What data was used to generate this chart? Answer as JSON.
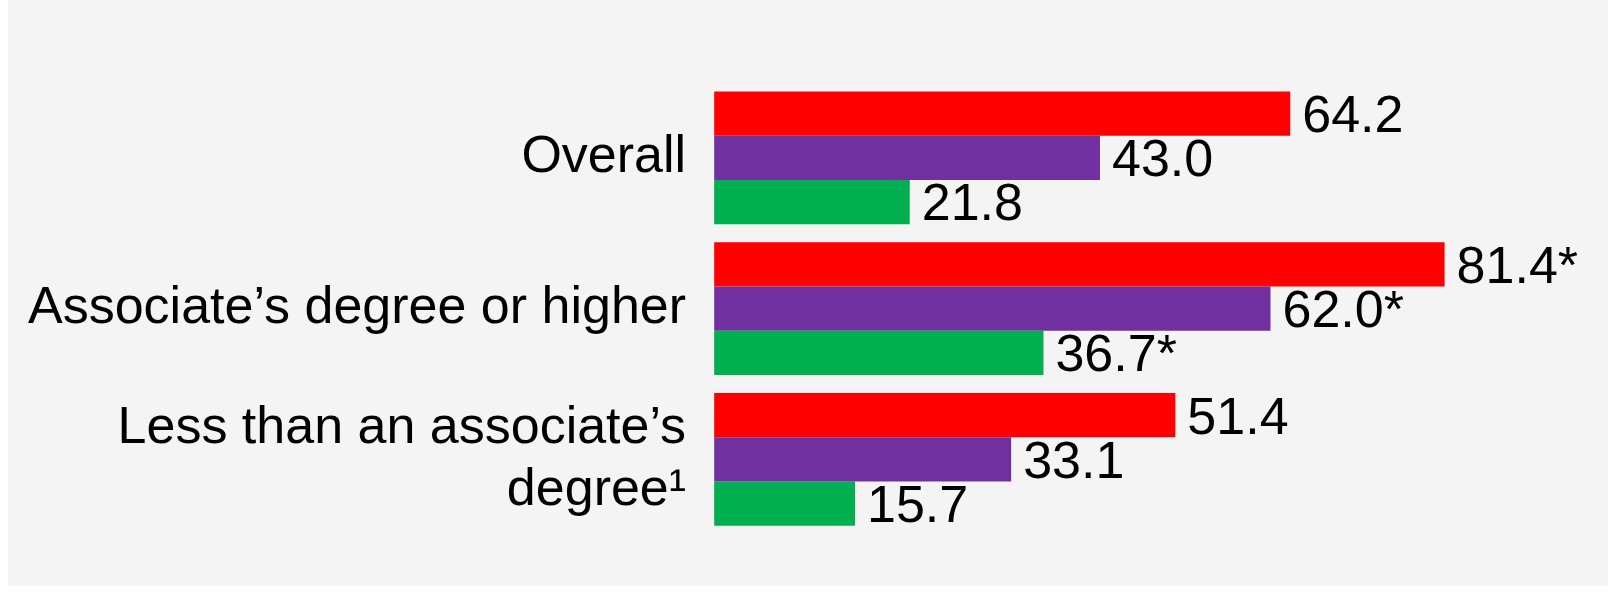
{
  "chart_data": {
    "type": "bar",
    "orientation": "horizontal",
    "categories": [
      "Overall",
      "Associate’s degree or higher",
      "Less than an associate’s degree¹"
    ],
    "series": [
      {
        "color": "#ff0000",
        "values": [
          64.2,
          81.4,
          51.4
        ],
        "value_labels": [
          "64.2",
          "81.4*",
          "51.4"
        ]
      },
      {
        "color": "#7030a0",
        "values": [
          43.0,
          62.0,
          33.1
        ],
        "value_labels": [
          "43.0",
          "62.0*",
          "33.1"
        ]
      },
      {
        "color": "#00b050",
        "values": [
          21.8,
          36.7,
          15.7
        ],
        "value_labels": [
          "21.8",
          "36.7*",
          "15.7"
        ]
      }
    ]
  }
}
